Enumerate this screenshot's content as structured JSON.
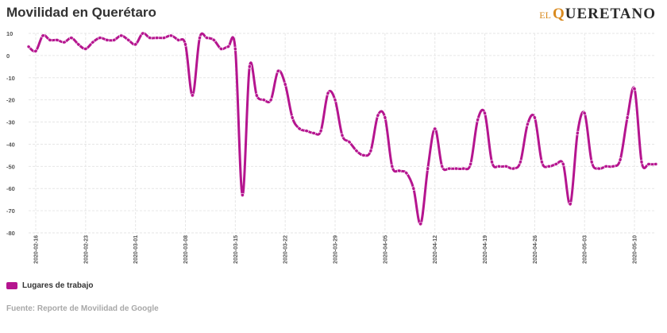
{
  "header": {
    "title": "Movilidad en Querétaro",
    "logo": {
      "prefix": "EL",
      "name_first": "Q",
      "name_rest": "UERETANO"
    }
  },
  "legend": {
    "label": "Lugares de trabajo"
  },
  "source": "Fuente: Reporte de Movilidad de Google",
  "colors": {
    "series": "#b5158f",
    "grid": "#e6e6e6",
    "text": "#333333"
  },
  "chart_data": {
    "type": "line",
    "title": "Movilidad en Querétaro",
    "xlabel": "",
    "ylabel": "",
    "ylim": [
      -80,
      10
    ],
    "yticks": [
      10,
      0,
      -10,
      -20,
      -30,
      -40,
      -50,
      -60,
      -70,
      -80
    ],
    "x_tick_labels": [
      "2020-02-16",
      "2020-02-23",
      "2020-03-01",
      "2020-03-08",
      "2020-03-15",
      "2020-03-22",
      "2020-03-29",
      "2020-04-05",
      "2020-04-12",
      "2020-04-19",
      "2020-04-26",
      "2020-05-03",
      "2020-05-10"
    ],
    "grid": true,
    "legend_position": "bottom-left",
    "series": [
      {
        "name": "Lugares de trabajo",
        "color": "#b5158f",
        "x": [
          "2020-02-15",
          "2020-02-16",
          "2020-02-17",
          "2020-02-18",
          "2020-02-19",
          "2020-02-20",
          "2020-02-21",
          "2020-02-22",
          "2020-02-23",
          "2020-02-24",
          "2020-02-25",
          "2020-02-26",
          "2020-02-27",
          "2020-02-28",
          "2020-02-29",
          "2020-03-01",
          "2020-03-02",
          "2020-03-03",
          "2020-03-04",
          "2020-03-05",
          "2020-03-06",
          "2020-03-07",
          "2020-03-08",
          "2020-03-09",
          "2020-03-10",
          "2020-03-11",
          "2020-03-12",
          "2020-03-13",
          "2020-03-14",
          "2020-03-15",
          "2020-03-16",
          "2020-03-17",
          "2020-03-18",
          "2020-03-19",
          "2020-03-20",
          "2020-03-21",
          "2020-03-22",
          "2020-03-23",
          "2020-03-24",
          "2020-03-25",
          "2020-03-26",
          "2020-03-27",
          "2020-03-28",
          "2020-03-29",
          "2020-03-30",
          "2020-03-31",
          "2020-04-01",
          "2020-04-02",
          "2020-04-03",
          "2020-04-04",
          "2020-04-05",
          "2020-04-06",
          "2020-04-07",
          "2020-04-08",
          "2020-04-09",
          "2020-04-10",
          "2020-04-11",
          "2020-04-12",
          "2020-04-13",
          "2020-04-14",
          "2020-04-15",
          "2020-04-16",
          "2020-04-17",
          "2020-04-18",
          "2020-04-19",
          "2020-04-20",
          "2020-04-21",
          "2020-04-22",
          "2020-04-23",
          "2020-04-24",
          "2020-04-25",
          "2020-04-26",
          "2020-04-27",
          "2020-04-28",
          "2020-04-29",
          "2020-04-30",
          "2020-05-01",
          "2020-05-02",
          "2020-05-03",
          "2020-05-04",
          "2020-05-05",
          "2020-05-06",
          "2020-05-07",
          "2020-05-08",
          "2020-05-09",
          "2020-05-10",
          "2020-05-11",
          "2020-05-12",
          "2020-05-13"
        ],
        "values": [
          4,
          2,
          9,
          7,
          7,
          6,
          8,
          5,
          3,
          6,
          8,
          7,
          7,
          9,
          7,
          5,
          10,
          8,
          8,
          8,
          9,
          7,
          5,
          -18,
          8,
          8,
          7,
          3,
          4,
          3,
          -63,
          -5,
          -18,
          -20,
          -20,
          -7,
          -13,
          -28,
          -33,
          -34,
          -35,
          -34,
          -17,
          -20,
          -36,
          -39,
          -43,
          -45,
          -43,
          -27,
          -28,
          -50,
          -52,
          -53,
          -60,
          -76,
          -51,
          -33,
          -50,
          -51,
          -51,
          -51,
          -49,
          -29,
          -26,
          -48,
          -50,
          -50,
          -51,
          -48,
          -31,
          -28,
          -48,
          -50,
          -49,
          -49,
          -67,
          -35,
          -26,
          -48,
          -51,
          -50,
          -50,
          -47,
          -28,
          -15,
          -48,
          -49,
          -49
        ]
      }
    ]
  }
}
